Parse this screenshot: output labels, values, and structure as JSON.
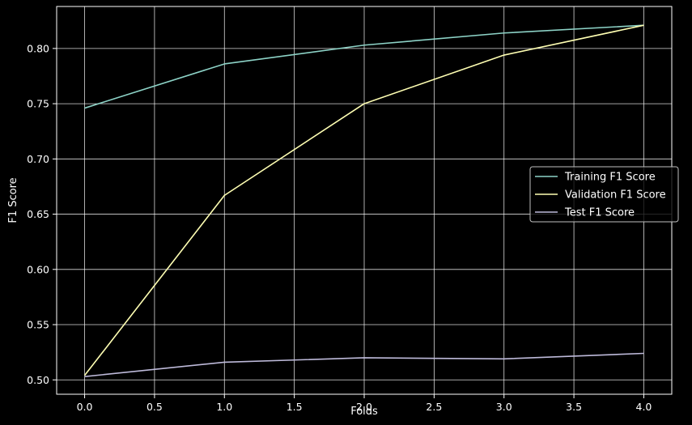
{
  "chart_data": {
    "type": "line",
    "title": "",
    "xlabel": "Folds",
    "ylabel": "F1 Score",
    "x": [
      0,
      1,
      2,
      3,
      4
    ],
    "xlim": [
      -0.2,
      4.2
    ],
    "ylim": [
      0.487,
      0.838
    ],
    "xticks": [
      "0.0",
      "0.5",
      "1.0",
      "1.5",
      "2.0",
      "2.5",
      "3.0",
      "3.5",
      "4.0"
    ],
    "yticks": [
      "0.50",
      "0.55",
      "0.60",
      "0.65",
      "0.70",
      "0.75",
      "0.80"
    ],
    "grid": true,
    "legend_position": "center-right",
    "background": "#000000",
    "series": [
      {
        "name": "Training F1 Score",
        "color": "#8dd3c7",
        "values": [
          0.746,
          0.786,
          0.803,
          0.814,
          0.821
        ]
      },
      {
        "name": "Validation F1 Score",
        "color": "#ffffb3",
        "values": [
          0.504,
          0.667,
          0.75,
          0.794,
          0.821
        ]
      },
      {
        "name": "Test F1 Score",
        "color": "#bebada",
        "values": [
          0.503,
          0.516,
          0.52,
          0.519,
          0.524
        ]
      }
    ]
  }
}
